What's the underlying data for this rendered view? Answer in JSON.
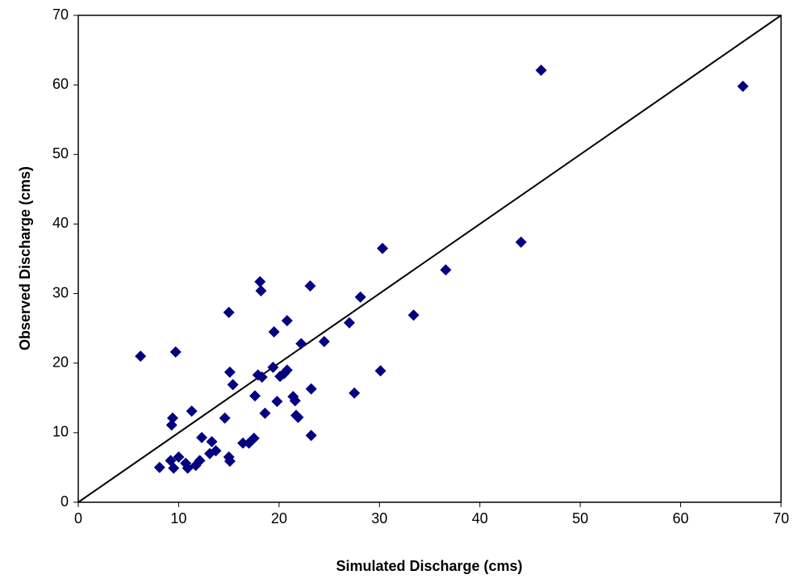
{
  "chart_data": {
    "type": "scatter",
    "x_label": "Simulated Discharge (cms)",
    "y_label": "Observed Discharge (cms)",
    "x": [
      6.2,
      9.7,
      9.4,
      9.3,
      8.1,
      9.2,
      9.5,
      10.0,
      10.7,
      10.9,
      11.3,
      11.7,
      12.1,
      12.3,
      13.3,
      13.1,
      13.7,
      14.6,
      15.0,
      15.1,
      15.0,
      15.1,
      15.4,
      16.4,
      17.0,
      17.5,
      17.6,
      17.9,
      18.1,
      18.2,
      18.3,
      18.6,
      19.4,
      19.5,
      19.8,
      20.1,
      20.5,
      20.8,
      20.8,
      21.4,
      21.6,
      21.7,
      21.9,
      22.2,
      23.1,
      23.2,
      23.2,
      24.5,
      27.0,
      27.5,
      28.1,
      30.1,
      30.3,
      33.4,
      36.6,
      44.1,
      46.1,
      66.2
    ],
    "values": [
      21.0,
      21.6,
      12.1,
      11.1,
      5.0,
      6.0,
      4.9,
      6.5,
      5.6,
      4.9,
      13.1,
      5.3,
      6.0,
      9.3,
      8.7,
      7.0,
      7.4,
      12.1,
      6.5,
      5.9,
      27.3,
      18.7,
      16.9,
      8.5,
      8.5,
      9.2,
      15.3,
      18.3,
      31.7,
      30.4,
      18.0,
      12.8,
      19.4,
      24.5,
      14.5,
      18.1,
      18.5,
      19.0,
      26.1,
      15.2,
      14.6,
      12.5,
      12.2,
      22.8,
      31.1,
      16.3,
      9.6,
      23.1,
      25.8,
      15.7,
      29.5,
      18.9,
      36.5,
      26.9,
      33.4,
      37.4,
      62.1,
      59.8
    ],
    "color": "#000080",
    "xlim": [
      0,
      70
    ],
    "xticks": [
      0,
      10,
      20,
      30,
      40,
      50,
      60,
      70
    ],
    "ylim": [
      0,
      70
    ],
    "yticks": [
      0,
      10,
      20,
      30,
      40,
      50,
      60,
      70
    ],
    "grid": false
  }
}
